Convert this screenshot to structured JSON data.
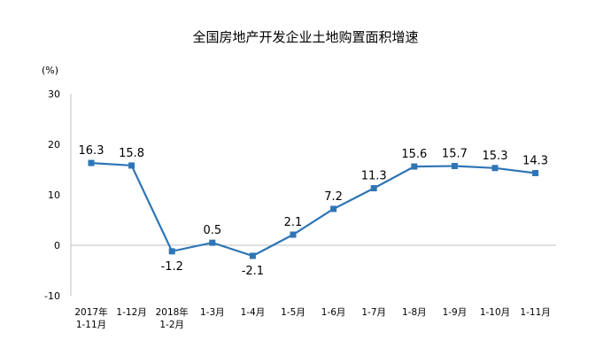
{
  "chart_data": {
    "type": "line",
    "title": "全国房地产开发企业土地购置面积增速",
    "ylabel": "(%)",
    "ylim": [
      -10,
      30
    ],
    "yticks": [
      30,
      20,
      10,
      0,
      -10
    ],
    "grid": false,
    "color": "#2e75b6",
    "categories": [
      [
        "2017年",
        "1-11月"
      ],
      [
        "1-12月"
      ],
      [
        "2018年",
        "1-2月"
      ],
      [
        "1-3月"
      ],
      [
        "1-4月"
      ],
      [
        "1-5月"
      ],
      [
        "1-6月"
      ],
      [
        "1-7月"
      ],
      [
        "1-8月"
      ],
      [
        "1-9月"
      ],
      [
        "1-10月"
      ],
      [
        "1-11月"
      ]
    ],
    "values": [
      16.3,
      15.8,
      -1.2,
      0.5,
      -2.1,
      2.1,
      7.2,
      11.3,
      15.6,
      15.7,
      15.3,
      14.3
    ],
    "data_labels": [
      "16.3",
      "15.8",
      "-1.2",
      "0.5",
      "-2.1",
      "2.1",
      "7.2",
      "11.3",
      "15.6",
      "15.7",
      "15.3",
      "14.3"
    ]
  }
}
